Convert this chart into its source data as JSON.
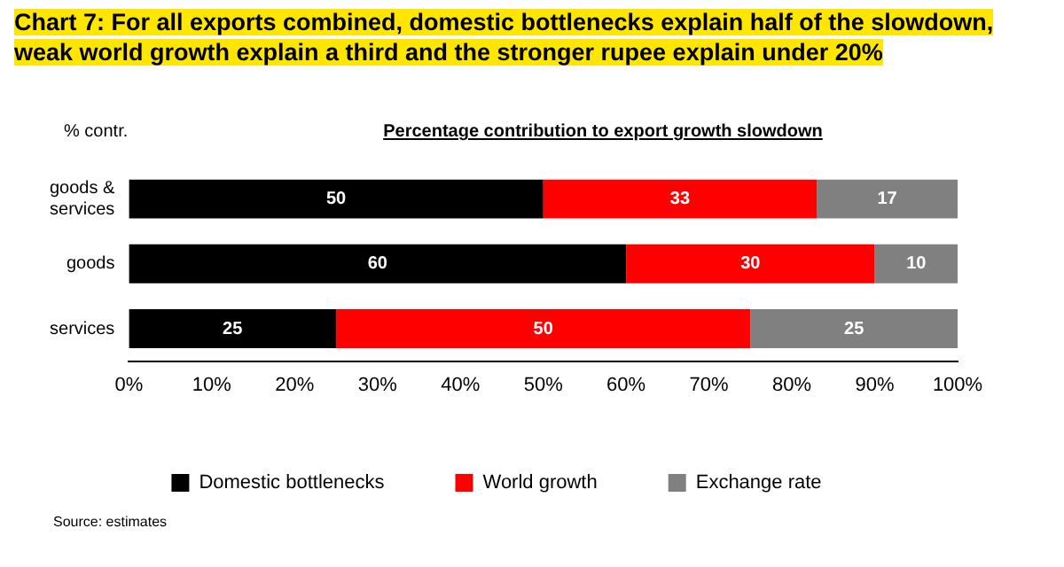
{
  "chart_data": {
    "type": "bar",
    "orientation": "horizontal",
    "stacked": true,
    "title": "Chart 7: For all exports combined, domestic bottlenecks explain half of the slowdown, weak world growth explain a third and the stronger rupee explain under 20%",
    "subtitle": "Percentage contribution to export growth slowdown",
    "ylabel": "% contr.",
    "categories": [
      "goods & services",
      "goods",
      "services"
    ],
    "series": [
      {
        "name": "Domestic bottlenecks",
        "color": "#000000",
        "values": [
          50,
          60,
          25
        ]
      },
      {
        "name": "World growth",
        "color": "#ff0000",
        "values": [
          33,
          30,
          50
        ]
      },
      {
        "name": "Exchange rate",
        "color": "#808080",
        "values": [
          17,
          10,
          25
        ]
      }
    ],
    "xlim": [
      0,
      100
    ],
    "xticks": [
      {
        "value": 0,
        "label": "0%"
      },
      {
        "value": 10,
        "label": "10%"
      },
      {
        "value": 20,
        "label": "20%"
      },
      {
        "value": 30,
        "label": "30%"
      },
      {
        "value": 40,
        "label": "40%"
      },
      {
        "value": 50,
        "label": "50%"
      },
      {
        "value": 60,
        "label": "60%"
      },
      {
        "value": 70,
        "label": "70%"
      },
      {
        "value": 80,
        "label": "80%"
      },
      {
        "value": 90,
        "label": "90%"
      },
      {
        "value": 100,
        "label": "100%"
      }
    ],
    "data_labels": true,
    "grid": false,
    "legend": "bottom",
    "annotations": [
      "Source: estimates"
    ]
  }
}
